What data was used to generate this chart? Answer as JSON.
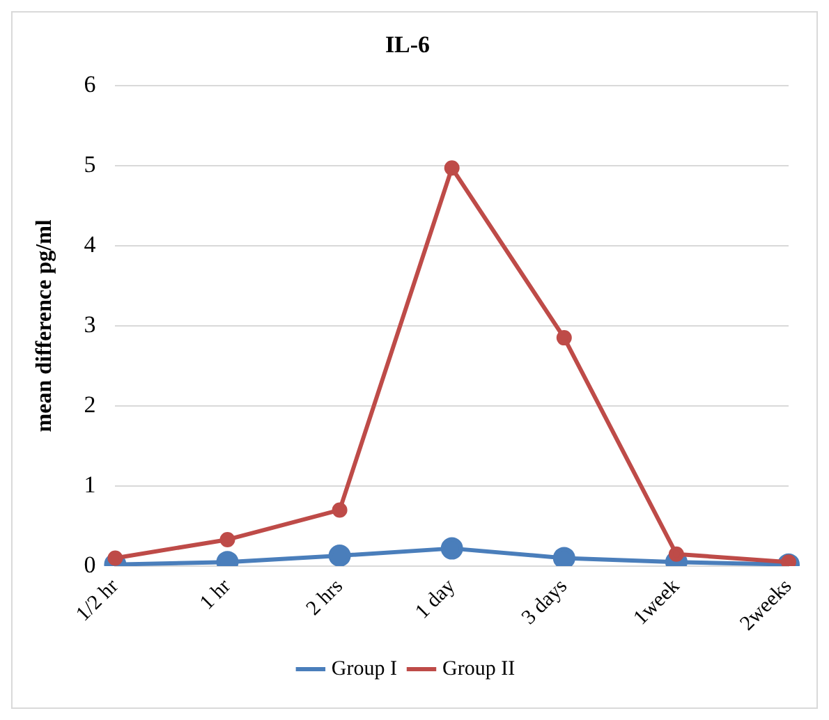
{
  "chart_data": {
    "type": "line",
    "title": "IL-6",
    "ylabel": "mean difference pg/ml",
    "categories": [
      "1/2 hr",
      "1 hr",
      "2 hrs",
      "1 day",
      "3 days",
      "1week",
      "2weeks"
    ],
    "series": [
      {
        "name": "Group I",
        "color": "#4a7ebb",
        "values": [
          0.02,
          0.05,
          0.13,
          0.22,
          0.1,
          0.05,
          0.02
        ]
      },
      {
        "name": "Group II",
        "color": "#be4b48",
        "values": [
          0.1,
          0.33,
          0.7,
          4.97,
          2.85,
          0.15,
          0.05
        ]
      }
    ],
    "ylim": [
      0,
      6
    ],
    "yticks": [
      0,
      1,
      2,
      3,
      4,
      5,
      6
    ],
    "grid": "y",
    "legend": "bottom",
    "marker": "circle",
    "line_style": "solid"
  }
}
